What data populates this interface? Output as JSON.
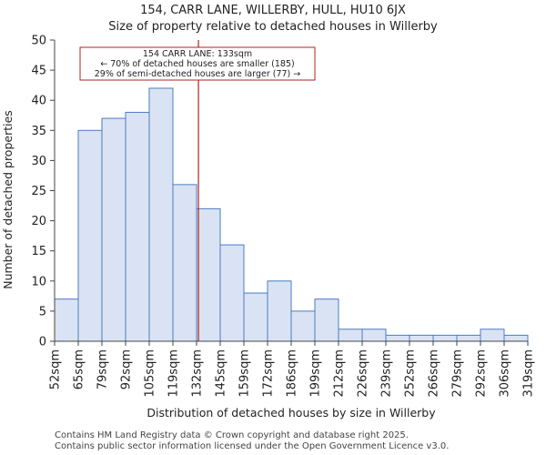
{
  "title": "154, CARR LANE, WILLERBY, HULL, HU10 6JX",
  "subtitle": "Size of property relative to detached houses in Willerby",
  "footer": [
    "Contains HM Land Registry data © Crown copyright and database right 2025.",
    "Contains public sector information licensed under the Open Government Licence v3.0."
  ],
  "colors": {
    "bar_fill": "#dae3f3",
    "bar_stroke": "#4a7cc3",
    "marker": "#b22222"
  },
  "chart_data": {
    "type": "bar",
    "title": "154, CARR LANE, WILLERBY, HULL, HU10 6JX",
    "subtitle": "Size of property relative to detached houses in Willerby",
    "xlabel": "Distribution of detached houses by size in Willerby",
    "ylabel": "Number of detached properties",
    "ylim": [
      0,
      50
    ],
    "yticks": [
      0,
      5,
      10,
      15,
      20,
      25,
      30,
      35,
      40,
      45,
      50
    ],
    "tick_labels": [
      "52sqm",
      "65sqm",
      "79sqm",
      "92sqm",
      "105sqm",
      "119sqm",
      "132sqm",
      "145sqm",
      "159sqm",
      "172sqm",
      "186sqm",
      "199sqm",
      "212sqm",
      "226sqm",
      "239sqm",
      "252sqm",
      "266sqm",
      "279sqm",
      "292sqm",
      "306sqm",
      "319sqm"
    ],
    "values": [
      7,
      35,
      37,
      38,
      42,
      26,
      22,
      16,
      8,
      10,
      5,
      7,
      2,
      2,
      1,
      1,
      1,
      1,
      2,
      1
    ],
    "marker": {
      "value_sqm": 133,
      "bin_position": 6.08
    },
    "annotation": [
      "154 CARR LANE: 133sqm",
      "← 70% of detached houses are smaller (185)",
      "29% of semi-detached houses are larger (77) →"
    ]
  }
}
